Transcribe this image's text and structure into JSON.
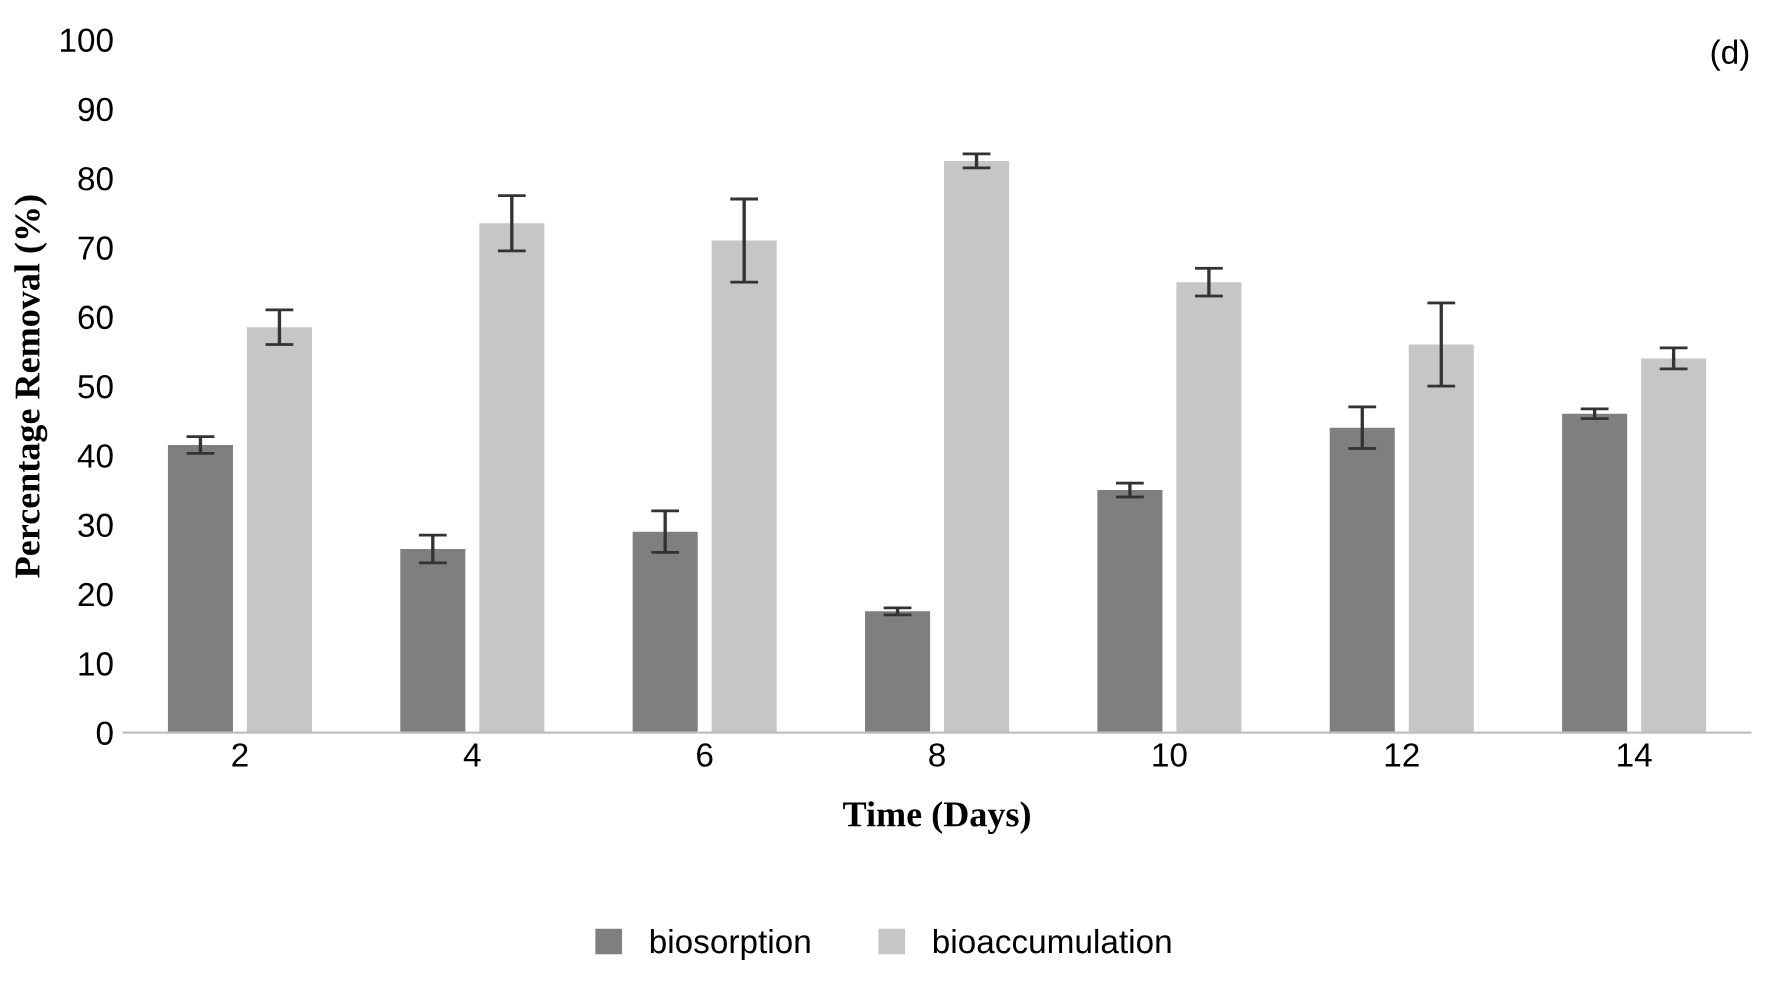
{
  "chart_data": {
    "type": "bar",
    "xlabel": "Time (Days)",
    "ylabel": "Percentage Removal (%)",
    "annotations": [
      "(d)"
    ],
    "categories": [
      "2",
      "4",
      "6",
      "8",
      "10",
      "12",
      "14"
    ],
    "series": [
      {
        "name": "biosorption",
        "color": "#7f7f7f",
        "values": [
          41.5,
          26.5,
          29,
          17.5,
          35,
          44,
          46
        ],
        "errors": [
          1.2,
          2,
          3,
          0.5,
          1,
          3,
          0.7
        ]
      },
      {
        "name": "bioaccumulation",
        "color": "#c5c6c6",
        "values": [
          58.5,
          73.5,
          71,
          82.5,
          65,
          56,
          54
        ],
        "errors": [
          2.5,
          4,
          6,
          1,
          2,
          6,
          1.5
        ]
      }
    ],
    "ylim": [
      0,
      100
    ],
    "yticks": [
      0,
      10,
      20,
      30,
      40,
      50,
      60,
      70,
      80,
      90,
      100
    ],
    "grid": false,
    "legend": "bottom"
  }
}
